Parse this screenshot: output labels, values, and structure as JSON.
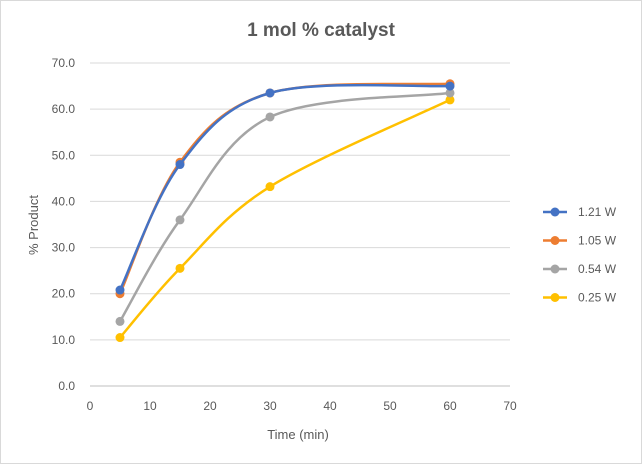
{
  "chart_data": {
    "type": "line",
    "title": "1 mol % catalyst",
    "xlabel": "Time (min)",
    "ylabel": "% Product",
    "xlim": [
      0,
      70
    ],
    "ylim": [
      0,
      70
    ],
    "x_ticks": [
      "0",
      "10",
      "20",
      "30",
      "40",
      "50",
      "60",
      "70"
    ],
    "y_ticks": [
      "0.0",
      "10.0",
      "20.0",
      "30.0",
      "40.0",
      "50.0",
      "60.0",
      "70.0"
    ],
    "grid": "horizontal",
    "smoothed": true,
    "legend_position": "right",
    "x": [
      5,
      15,
      30,
      60
    ],
    "series": [
      {
        "name": "1.21 W",
        "color": "#4472C4",
        "values": [
          20.8,
          48.0,
          63.5,
          65.0
        ]
      },
      {
        "name": "1.05 W",
        "color": "#ED7D31",
        "values": [
          20.0,
          48.5,
          63.5,
          65.5
        ]
      },
      {
        "name": "0.54 W",
        "color": "#A5A5A5",
        "values": [
          14.0,
          36.0,
          58.3,
          63.5
        ]
      },
      {
        "name": "0.25 W",
        "color": "#FFC000",
        "values": [
          10.5,
          25.5,
          43.2,
          62.0
        ]
      }
    ]
  }
}
